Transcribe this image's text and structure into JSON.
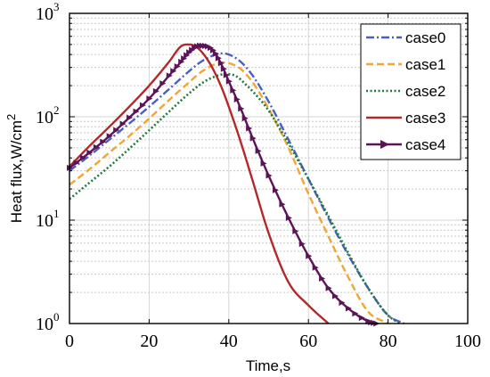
{
  "chart_data": {
    "type": "line",
    "title": "",
    "xlabel": "Time,s",
    "ylabel": "Heat flux,W/cm",
    "ylabel_superscript": "2",
    "xscale": "linear",
    "yscale": "log",
    "xlim": [
      0,
      100
    ],
    "ylim": [
      1,
      1000
    ],
    "x_ticks": [
      "0",
      "20",
      "40",
      "60",
      "80",
      "100"
    ],
    "y_ticks": [
      {
        "base": "10",
        "exp": "0"
      },
      {
        "base": "10",
        "exp": "1"
      },
      {
        "base": "10",
        "exp": "2"
      },
      {
        "base": "10",
        "exp": "3"
      }
    ],
    "grid": true,
    "legend_position": "top-right",
    "series": [
      {
        "name": "case0",
        "color": "#4a5fc1",
        "style": "dashdot",
        "x": [
          0,
          5,
          10,
          15,
          20,
          25,
          30,
          33,
          36,
          38,
          40,
          43,
          46,
          50,
          55,
          60,
          65,
          70,
          75,
          80,
          84
        ],
        "y": [
          30,
          42,
          60,
          86,
          125,
          185,
          275,
          340,
          390,
          410,
          400,
          340,
          250,
          140,
          60,
          25,
          10.5,
          4.6,
          2.2,
          1.2,
          1.0
        ]
      },
      {
        "name": "case1",
        "color": "#f4a433",
        "style": "dash",
        "x": [
          0,
          5,
          10,
          15,
          20,
          25,
          30,
          33,
          36,
          38,
          40,
          43,
          46,
          50,
          55,
          60,
          65,
          70,
          75,
          80
        ],
        "y": [
          22,
          31,
          45,
          65,
          96,
          145,
          215,
          270,
          315,
          335,
          330,
          290,
          215,
          120,
          50,
          18,
          7,
          2.8,
          1.3,
          1.0
        ]
      },
      {
        "name": "case2",
        "color": "#1f7a3c",
        "style": "dot",
        "x": [
          0,
          5,
          10,
          15,
          20,
          25,
          30,
          34,
          38,
          40,
          42,
          44,
          47,
          50,
          55,
          60,
          65,
          70,
          75,
          80,
          83
        ],
        "y": [
          16,
          23,
          33,
          49,
          74,
          112,
          168,
          220,
          255,
          258,
          245,
          210,
          160,
          115,
          55,
          25,
          11,
          4.8,
          2.2,
          1.2,
          1.0
        ]
      },
      {
        "name": "case3",
        "color": "#b5282a",
        "style": "solid",
        "x": [
          0,
          5,
          10,
          15,
          20,
          25,
          28,
          30,
          32,
          35,
          38,
          40,
          43,
          46,
          50,
          55,
          60,
          65
        ],
        "y": [
          33,
          52,
          80,
          125,
          200,
          340,
          480,
          500,
          470,
          340,
          200,
          125,
          57,
          24,
          7.5,
          2.5,
          1.5,
          1.0
        ]
      },
      {
        "name": "case4",
        "color": "#5c1458",
        "style": "solid-marker",
        "x": [
          0,
          5,
          10,
          15,
          20,
          25,
          28,
          30,
          32,
          34,
          36,
          38,
          40,
          43,
          46,
          50,
          55,
          60,
          65,
          70,
          75,
          77
        ],
        "y": [
          32,
          45,
          65,
          98,
          150,
          250,
          340,
          420,
          480,
          485,
          440,
          330,
          220,
          120,
          62,
          27,
          10.5,
          4.5,
          2.2,
          1.4,
          1.05,
          1.0
        ]
      }
    ]
  }
}
